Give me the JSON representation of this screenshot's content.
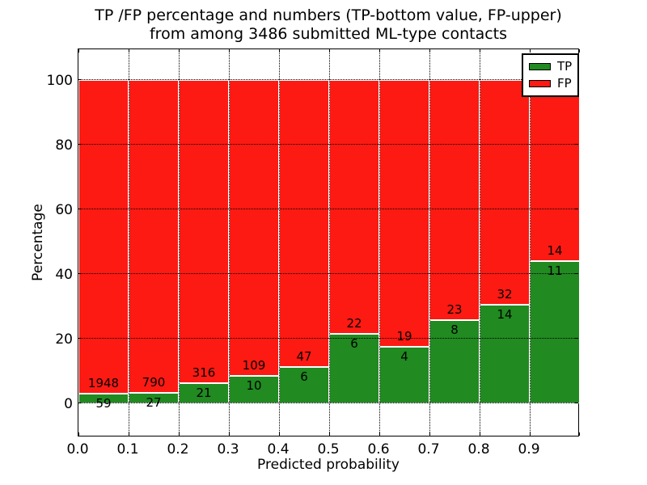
{
  "figure": {
    "title_line1": "TP /FP percentage and numbers (TP-bottom value, FP-upper)",
    "title_line2": "from among 3486 submitted ML-type contacts",
    "total_contacts": 3486
  },
  "chart_data": {
    "type": "bar",
    "stacked": true,
    "title": "TP /FP percentage and numbers (TP-bottom value, FP-upper) from among 3486 submitted ML-type contacts",
    "xlabel": "Predicted probability",
    "ylabel": "Percentage",
    "xlim": [
      0.0,
      1.0
    ],
    "ylim": [
      -10,
      110
    ],
    "grid": "dotted",
    "legend_position": "upper right",
    "bin_width": 0.1,
    "bin_starts": [
      0.0,
      0.1,
      0.2,
      0.3,
      0.4,
      0.5,
      0.6,
      0.7,
      0.8,
      0.9
    ],
    "xtick_labels": [
      "0.0",
      "0.1",
      "0.2",
      "0.3",
      "0.4",
      "0.5",
      "0.6",
      "0.7",
      "0.8",
      "0.9"
    ],
    "ytick_values": [
      0,
      20,
      40,
      60,
      80,
      100
    ],
    "ytick_labels": [
      "0",
      "20",
      "40",
      "60",
      "80",
      "100"
    ],
    "series": [
      {
        "name": "TP",
        "color": "#218a21",
        "counts": [
          59,
          27,
          21,
          10,
          6,
          6,
          4,
          8,
          14,
          11
        ]
      },
      {
        "name": "FP",
        "color": "#fc1a13",
        "counts": [
          1948,
          790,
          316,
          109,
          47,
          22,
          19,
          23,
          32,
          14
        ]
      }
    ],
    "tp_percent_of_bin": [
      2.94,
      3.3,
      6.23,
      8.4,
      11.32,
      21.43,
      17.39,
      25.81,
      30.43,
      44.0
    ],
    "bars_sum_to_percent": 100
  },
  "colors": {
    "tp_green": "#218a21",
    "fp_red": "#fc1a13",
    "bar_edge": "#ffffff",
    "grid": "#000000",
    "background": "#ffffff"
  }
}
